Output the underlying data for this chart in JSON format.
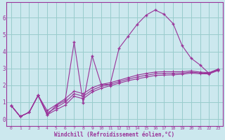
{
  "bg_color": "#cce8ee",
  "line_color": "#993399",
  "grid_color": "#99cccc",
  "xlabel": "Windchill (Refroidissement éolien,°C)",
  "xlabel_color": "#993399",
  "tick_color": "#993399",
  "xlim": [
    -0.5,
    23.5
  ],
  "ylim": [
    -0.4,
    6.9
  ],
  "yticks": [
    0,
    1,
    2,
    3,
    4,
    5,
    6
  ],
  "xticks": [
    0,
    1,
    2,
    3,
    4,
    5,
    6,
    7,
    8,
    9,
    10,
    11,
    12,
    13,
    14,
    15,
    16,
    17,
    18,
    19,
    20,
    21,
    22,
    23
  ],
  "series1": [
    0.8,
    0.15,
    0.4,
    1.4,
    0.25,
    0.8,
    1.1,
    4.55,
    0.95,
    3.75,
    2.05,
    2.05,
    4.2,
    4.9,
    5.6,
    6.15,
    6.45,
    6.2,
    5.65,
    4.35,
    3.6,
    3.2,
    2.7,
    2.95
  ],
  "series2": [
    0.8,
    0.15,
    0.4,
    1.4,
    0.5,
    0.85,
    1.2,
    1.65,
    1.5,
    1.85,
    2.05,
    2.15,
    2.3,
    2.45,
    2.6,
    2.7,
    2.78,
    2.8,
    2.8,
    2.8,
    2.85,
    2.78,
    2.75,
    2.95
  ],
  "series3": [
    0.8,
    0.15,
    0.4,
    1.4,
    0.25,
    0.55,
    0.82,
    1.35,
    1.2,
    1.6,
    1.82,
    1.97,
    2.12,
    2.27,
    2.38,
    2.48,
    2.58,
    2.6,
    2.62,
    2.65,
    2.72,
    2.68,
    2.67,
    2.87
  ],
  "series4": [
    0.8,
    0.15,
    0.4,
    1.4,
    0.35,
    0.68,
    1.0,
    1.5,
    1.35,
    1.72,
    1.93,
    2.06,
    2.21,
    2.36,
    2.49,
    2.59,
    2.68,
    2.7,
    2.71,
    2.72,
    2.78,
    2.73,
    2.71,
    2.91
  ]
}
